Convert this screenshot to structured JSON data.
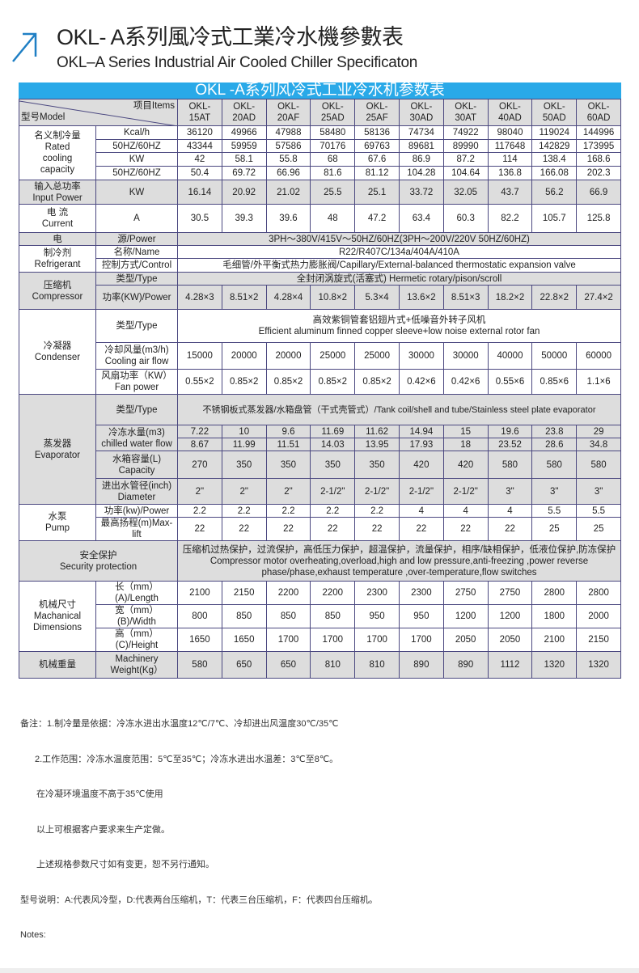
{
  "title": {
    "cn": "OKL- A系列風冷式工業冷水機參數表",
    "en": "OKL–A Series Industrial Air Cooled Chiller Specificaton",
    "accent": "#1f7fc4"
  },
  "table": {
    "banner": "OKL -A系列风冷式工业冷水机参数表",
    "banner_color": "#29a9e8",
    "header": {
      "model": "型号Model",
      "items": "项目Items",
      "models": [
        "OKL-\n15AT",
        "OKL-\n20AD",
        "OKL-\n20AF",
        "OKL-\n25AD",
        "OKL-\n25AF",
        "OKL-\n30AD",
        "OKL-\n30AT",
        "OKL-\n40AD",
        "OKL-\n50AD",
        "OKL-\n60AD"
      ]
    },
    "rated": {
      "label": "名义制冷量\nRated\ncooling\ncapacity",
      "units": [
        "Kcal/h",
        "50HZ/60HZ",
        "KW",
        "50HZ/60HZ"
      ],
      "rows": [
        [
          "36120",
          "49966",
          "47988",
          "58480",
          "58136",
          "74734",
          "74922",
          "98040",
          "119024",
          "144996"
        ],
        [
          "43344",
          "59959",
          "57586",
          "70176",
          "69763",
          "89681",
          "89990",
          "117648",
          "142829",
          "173995"
        ],
        [
          "42",
          "58.1",
          "55.8",
          "68",
          "67.6",
          "86.9",
          "87.2",
          "114",
          "138.4",
          "168.6"
        ],
        [
          "50.4",
          "69.72",
          "66.96",
          "81.6",
          "81.12",
          "104.28",
          "104.64",
          "136.8",
          "166.08",
          "202.3"
        ]
      ]
    },
    "input_power": {
      "label": "输入总功率\nInput Power",
      "unit": "KW",
      "values": [
        "16.14",
        "20.92",
        "21.02",
        "25.5",
        "25.1",
        "33.72",
        "32.05",
        "43.7",
        "56.2",
        "66.9"
      ]
    },
    "current": {
      "label": "电  流\nCurrent",
      "unit": "A",
      "values": [
        "30.5",
        "39.3",
        "39.6",
        "48",
        "47.2",
        "63.4",
        "60.3",
        "82.2",
        "105.7",
        "125.8"
      ]
    },
    "power_supply": {
      "label_a": "电",
      "label_b": "源/Power",
      "value": "3PH～380V/415V～50HZ/60HZ(3PH～200V/220V  50HZ/60HZ)"
    },
    "refrigerant": {
      "label": "制冷剂\nRefrigerant",
      "name_label": "名称/Name",
      "name": "R22/R407C/134a/404A/410A",
      "control_label": "控制方式/Control",
      "control": "毛细管/外平衡式热力膨胀阀/Capillary/External-balanced thermostatic expansion valve"
    },
    "compressor": {
      "label": "压缩机\nCompressor",
      "type_label": "类型/Type",
      "type": "全封闭涡旋式(活塞式)           Hermetic rotary/pison/scroll",
      "power_label": "功率(KW)/Power",
      "power": [
        "4.28×3",
        "8.51×2",
        "4.28×4",
        "10.8×2",
        "5.3×4",
        "13.6×2",
        "8.51×3",
        "18.2×2",
        "22.8×2",
        "27.4×2"
      ]
    },
    "condenser": {
      "label": "冷凝器\nCondenser",
      "type_label": "类型/Type",
      "type": "高效紫铜管套铝翅片式+低噪音外转子风机\nEfficient aluminum finned copper sleeve+low noise external rotor fan",
      "air_label": "冷却风量(m3/h)\nCooling air flow",
      "air": [
        "15000",
        "20000",
        "20000",
        "25000",
        "25000",
        "30000",
        "30000",
        "40000",
        "50000",
        "60000"
      ],
      "fan_label": "风扇功率（KW）\nFan power",
      "fan": [
        "0.55×2",
        "0.85×2",
        "0.85×2",
        "0.85×2",
        "0.85×2",
        "0.42×6",
        "0.42×6",
        "0.55×6",
        "0.85×6",
        "1.1×6"
      ]
    },
    "evaporator": {
      "label": "蒸发器\nEvaporator",
      "type_label": "类型/Type",
      "type": "不锈钢板式蒸发器/水箱盘管（干式壳管式）/Tank coil/shell and tube/Stainless steel plate evaporator",
      "chilled_label": "冷冻水量(m3)\nchilled water flow",
      "chilled": [
        [
          "7.22",
          "10",
          "9.6",
          "11.69",
          "11.62",
          "14.94",
          "15",
          "19.6",
          "23.8",
          "29"
        ],
        [
          "8.67",
          "11.99",
          "11.51",
          "14.03",
          "13.95",
          "17.93",
          "18",
          "23.52",
          "28.6",
          "34.8"
        ]
      ],
      "capacity_label": "水箱容量(L)\nCapacity",
      "capacity": [
        "270",
        "350",
        "350",
        "350",
        "350",
        "420",
        "420",
        "580",
        "580",
        "580"
      ],
      "diameter_label": "进出水管径(inch)\nDiameter",
      "diameter": [
        "2\"",
        "2\"",
        "2\"",
        "2-1/2\"",
        "2-1/2\"",
        "2-1/2\"",
        "2-1/2\"",
        "3\"",
        "3\"",
        "3\""
      ]
    },
    "pump": {
      "label": "水泵\nPump",
      "power_label": "功率(kw)/Power",
      "power": [
        "2.2",
        "2.2",
        "2.2",
        "2.2",
        "2.2",
        "4",
        "4",
        "4",
        "5.5",
        "5.5"
      ],
      "lift_label": "最高扬程(m)Max-lift",
      "lift": [
        "22",
        "22",
        "22",
        "22",
        "22",
        "22",
        "22",
        "22",
        "25",
        "25"
      ]
    },
    "security": {
      "label": "安全保护\nSecurity protection",
      "value": "压缩机过热保护，过流保护，高低压力保护，超温保护，流量保护，相序/缺相保护，低液位保护,防冻保护\nCompressor motor overheating,overload,high and low pressure,anti-freezing ,power reverse\nphase/phase,exhaust temperature ,over-temperature,flow switches"
    },
    "dimensions": {
      "label": "机械尺寸\nMachanical\nDimensions",
      "length_label": "长（mm）(A)/Length",
      "length": [
        "2100",
        "2150",
        "2200",
        "2200",
        "2300",
        "2300",
        "2750",
        "2750",
        "2800",
        "2800"
      ],
      "width_label": "宽（mm）(B)/Width",
      "width": [
        "800",
        "850",
        "850",
        "850",
        "950",
        "950",
        "1200",
        "1200",
        "1800",
        "2000"
      ],
      "height_label": "高（mm）(C)/Height",
      "height": [
        "1650",
        "1650",
        "1700",
        "1700",
        "1700",
        "1700",
        "2050",
        "2050",
        "2100",
        "2150"
      ]
    },
    "weight": {
      "label": "机械重量",
      "sub_label": "Machinery\nWeight(Kg）",
      "values": [
        "580",
        "650",
        "650",
        "810",
        "810",
        "890",
        "890",
        "1112",
        "1320",
        "1320"
      ]
    }
  },
  "notes": {
    "lines": [
      "备注：1.制冷量是依据：冷冻水进出水温度12℃/7℃、冷却进出风温度30℃/35℃",
      "2.工作范围：冷冻水温度范围：5℃至35℃；冷冻水进出水温差：3℃至8℃。",
      "在冷凝环境温度不高于35℃使用",
      "以上可根据客户要求来生产定做。",
      "上述规格参数尺寸如有变更，恕不另行通知。",
      "型号说明：A:代表风冷型，D:代表两台压缩机，T：代表三台压缩机，F：代表四台压缩机。",
      "Notes:"
    ]
  }
}
